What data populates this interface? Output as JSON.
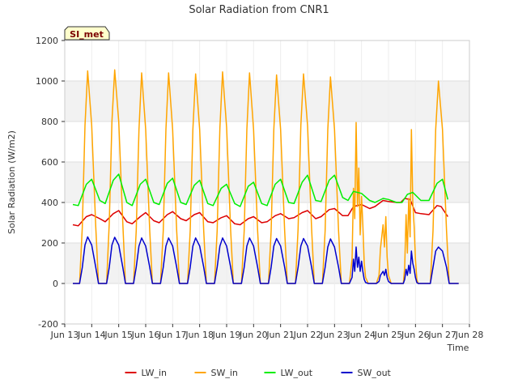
{
  "chart_data": {
    "type": "line",
    "title": "Solar Radiation from CNR1",
    "xlabel": "Time",
    "ylabel": "Solar Radiation (W/m2)",
    "station_badge": "SI_met",
    "xlim": [
      13.0,
      28.0
    ],
    "ylim": [
      -200,
      1200
    ],
    "x_unit": "day of June",
    "x_tick_values": [
      13,
      14,
      15,
      16,
      17,
      18,
      19,
      20,
      21,
      22,
      23,
      24,
      25,
      26,
      27,
      28
    ],
    "x_tick_labels": [
      "Jun 13",
      "Jun 14",
      "Jun 15",
      "Jun 16",
      "Jun 17",
      "Jun 18",
      "Jun 19",
      "Jun 20",
      "Jun 21",
      "Jun 22",
      "Jun 23",
      "Jun 24",
      "Jun 25",
      "Jun 26",
      "Jun 27",
      "Jun 28"
    ],
    "y_tick_values": [
      -200,
      0,
      200,
      400,
      600,
      800,
      1000,
      1200
    ],
    "y_tick_labels": [
      "-200",
      "0",
      "200",
      "400",
      "600",
      "800",
      "1000",
      "1200"
    ],
    "grid": true,
    "legend_position": "bottom-center",
    "series": [
      {
        "name": "LW_in",
        "color": "#dd0000",
        "x": [
          13.3,
          13.5,
          13.8,
          14.0,
          14.3,
          14.5,
          14.8,
          15.0,
          15.3,
          15.5,
          15.8,
          16.0,
          16.3,
          16.5,
          16.8,
          17.0,
          17.3,
          17.5,
          17.8,
          18.0,
          18.3,
          18.5,
          18.8,
          19.0,
          19.3,
          19.5,
          19.8,
          20.0,
          20.3,
          20.5,
          20.8,
          21.0,
          21.3,
          21.5,
          21.8,
          22.0,
          22.3,
          22.5,
          22.8,
          23.0,
          23.3,
          23.5,
          23.7,
          24.0,
          24.3,
          24.5,
          24.8,
          25.0,
          25.3,
          25.45,
          25.6,
          25.8,
          26.0,
          26.2,
          26.5,
          26.8,
          26.95,
          27.2
        ],
        "values": [
          290,
          285,
          330,
          340,
          320,
          305,
          345,
          360,
          305,
          295,
          330,
          350,
          310,
          300,
          340,
          355,
          320,
          310,
          340,
          350,
          305,
          300,
          325,
          335,
          295,
          290,
          320,
          330,
          300,
          305,
          335,
          345,
          320,
          325,
          350,
          360,
          320,
          330,
          365,
          370,
          335,
          335,
          380,
          390,
          370,
          380,
          410,
          405,
          400,
          400,
          420,
          415,
          350,
          345,
          340,
          385,
          380,
          330
        ]
      },
      {
        "name": "SW_in",
        "color": "#ffa500",
        "x": [
          13.3,
          13.55,
          13.65,
          13.75,
          13.85,
          14.0,
          14.15,
          14.25,
          14.35,
          14.4,
          14.55,
          14.65,
          14.75,
          14.85,
          15.0,
          15.15,
          15.25,
          15.35,
          15.4,
          15.55,
          15.65,
          15.75,
          15.85,
          16.0,
          16.15,
          16.25,
          16.35,
          16.4,
          16.55,
          16.65,
          16.75,
          16.85,
          17.0,
          17.15,
          17.25,
          17.35,
          17.4,
          17.55,
          17.65,
          17.75,
          17.85,
          18.0,
          18.15,
          18.25,
          18.35,
          18.4,
          18.55,
          18.65,
          18.75,
          18.85,
          19.0,
          19.15,
          19.25,
          19.35,
          19.4,
          19.55,
          19.65,
          19.75,
          19.85,
          20.0,
          20.15,
          20.25,
          20.35,
          20.4,
          20.55,
          20.65,
          20.75,
          20.85,
          21.0,
          21.15,
          21.25,
          21.35,
          21.4,
          21.55,
          21.65,
          21.75,
          21.85,
          22.0,
          22.15,
          22.25,
          22.35,
          22.4,
          22.55,
          22.65,
          22.75,
          22.85,
          23.0,
          23.15,
          23.25,
          23.35,
          23.4,
          23.55,
          23.65,
          23.7,
          23.75,
          23.8,
          23.85,
          23.9,
          23.95,
          24.0,
          24.05,
          24.1,
          24.15,
          24.25,
          24.35,
          24.4,
          24.55,
          24.65,
          24.7,
          24.8,
          24.85,
          24.9,
          24.95,
          25.0,
          25.1,
          25.25,
          25.35,
          25.4,
          25.55,
          25.6,
          25.65,
          25.7,
          25.75,
          25.8,
          25.85,
          25.9,
          25.95,
          26.0,
          26.05,
          26.1,
          26.2,
          26.35,
          26.4,
          26.55,
          26.65,
          26.75,
          26.85,
          27.0,
          27.15,
          27.25,
          27.35,
          27.4,
          27.6
        ],
        "values": [
          0,
          0,
          280,
          780,
          1050,
          780,
          280,
          0,
          0,
          0,
          0,
          300,
          800,
          1055,
          800,
          300,
          0,
          0,
          0,
          0,
          260,
          760,
          1040,
          760,
          260,
          0,
          0,
          0,
          0,
          260,
          760,
          1040,
          760,
          260,
          0,
          0,
          0,
          0,
          260,
          760,
          1035,
          760,
          260,
          0,
          0,
          0,
          0,
          260,
          770,
          1045,
          770,
          260,
          0,
          0,
          0,
          0,
          260,
          760,
          1040,
          760,
          260,
          0,
          0,
          0,
          0,
          260,
          760,
          1030,
          760,
          260,
          0,
          0,
          0,
          0,
          270,
          780,
          1035,
          780,
          270,
          0,
          0,
          0,
          0,
          260,
          760,
          1020,
          760,
          260,
          0,
          0,
          0,
          0,
          120,
          470,
          320,
          795,
          380,
          570,
          240,
          430,
          290,
          100,
          30,
          0,
          0,
          0,
          0,
          40,
          170,
          290,
          180,
          330,
          130,
          40,
          0,
          0,
          0,
          0,
          0,
          80,
          340,
          150,
          420,
          230,
          760,
          400,
          280,
          120,
          20,
          0,
          0,
          0,
          0,
          0,
          260,
          760,
          1000,
          760,
          260,
          0,
          0,
          0,
          0
        ]
      },
      {
        "name": "LW_out",
        "color": "#00ee00",
        "x": [
          13.3,
          13.5,
          13.8,
          14.0,
          14.3,
          14.5,
          14.8,
          15.0,
          15.3,
          15.5,
          15.8,
          16.0,
          16.3,
          16.5,
          16.8,
          17.0,
          17.3,
          17.5,
          17.8,
          18.0,
          18.3,
          18.5,
          18.8,
          19.0,
          19.3,
          19.5,
          19.8,
          20.0,
          20.3,
          20.5,
          20.8,
          21.0,
          21.3,
          21.5,
          21.8,
          22.0,
          22.3,
          22.5,
          22.8,
          23.0,
          23.3,
          23.5,
          23.7,
          24.0,
          24.3,
          24.5,
          24.8,
          25.0,
          25.3,
          25.5,
          25.7,
          25.9,
          26.2,
          26.5,
          26.8,
          27.0,
          27.2
        ],
        "values": [
          390,
          385,
          490,
          515,
          410,
          395,
          510,
          540,
          400,
          385,
          490,
          515,
          400,
          390,
          495,
          520,
          400,
          390,
          485,
          510,
          395,
          385,
          470,
          490,
          395,
          380,
          480,
          500,
          395,
          385,
          490,
          515,
          400,
          395,
          500,
          535,
          410,
          405,
          510,
          535,
          425,
          410,
          455,
          445,
          410,
          400,
          420,
          415,
          400,
          400,
          440,
          450,
          410,
          410,
          495,
          515,
          415
        ]
      },
      {
        "name": "SW_out",
        "color": "#0000cc",
        "x": [
          13.3,
          13.55,
          13.65,
          13.75,
          13.85,
          14.0,
          14.15,
          14.25,
          14.35,
          14.4,
          14.55,
          14.65,
          14.75,
          14.85,
          15.0,
          15.15,
          15.25,
          15.35,
          15.4,
          15.55,
          15.65,
          15.75,
          15.85,
          16.0,
          16.15,
          16.25,
          16.35,
          16.4,
          16.55,
          16.65,
          16.75,
          16.85,
          17.0,
          17.15,
          17.25,
          17.35,
          17.4,
          17.55,
          17.65,
          17.75,
          17.85,
          18.0,
          18.15,
          18.25,
          18.35,
          18.4,
          18.55,
          18.65,
          18.75,
          18.85,
          19.0,
          19.15,
          19.25,
          19.35,
          19.4,
          19.55,
          19.65,
          19.75,
          19.85,
          20.0,
          20.15,
          20.25,
          20.35,
          20.4,
          20.55,
          20.65,
          20.75,
          20.85,
          21.0,
          21.15,
          21.25,
          21.35,
          21.4,
          21.55,
          21.65,
          21.75,
          21.85,
          22.0,
          22.15,
          22.25,
          22.35,
          22.4,
          22.55,
          22.65,
          22.75,
          22.85,
          23.0,
          23.15,
          23.25,
          23.35,
          23.4,
          23.55,
          23.65,
          23.7,
          23.75,
          23.8,
          23.85,
          23.9,
          23.95,
          24.0,
          24.05,
          24.1,
          24.15,
          24.25,
          24.35,
          24.4,
          24.55,
          24.65,
          24.7,
          24.8,
          24.85,
          24.9,
          24.95,
          25.0,
          25.1,
          25.25,
          25.35,
          25.4,
          25.55,
          25.6,
          25.65,
          25.7,
          25.75,
          25.8,
          25.85,
          25.9,
          25.95,
          26.0,
          26.05,
          26.1,
          26.2,
          26.35,
          26.4,
          26.55,
          26.65,
          26.75,
          26.85,
          27.0,
          27.15,
          27.25,
          27.35,
          27.4,
          27.6
        ],
        "values": [
          0,
          0,
          80,
          190,
          230,
          190,
          80,
          0,
          0,
          0,
          0,
          80,
          190,
          228,
          190,
          80,
          0,
          0,
          0,
          0,
          80,
          185,
          225,
          185,
          80,
          0,
          0,
          0,
          0,
          80,
          185,
          225,
          185,
          80,
          0,
          0,
          0,
          0,
          80,
          185,
          225,
          185,
          80,
          0,
          0,
          0,
          0,
          80,
          185,
          225,
          185,
          80,
          0,
          0,
          0,
          0,
          80,
          185,
          225,
          185,
          80,
          0,
          0,
          0,
          0,
          80,
          185,
          222,
          185,
          80,
          0,
          0,
          0,
          0,
          80,
          185,
          222,
          185,
          80,
          0,
          0,
          0,
          0,
          80,
          180,
          220,
          180,
          80,
          0,
          0,
          0,
          0,
          30,
          120,
          60,
          180,
          80,
          130,
          60,
          110,
          60,
          20,
          5,
          0,
          0,
          0,
          0,
          10,
          40,
          60,
          40,
          70,
          30,
          10,
          0,
          0,
          0,
          0,
          0,
          20,
          70,
          40,
          90,
          50,
          160,
          100,
          70,
          30,
          5,
          0,
          0,
          0,
          0,
          0,
          80,
          160,
          180,
          160,
          80,
          0,
          0,
          0,
          0
        ]
      }
    ]
  }
}
